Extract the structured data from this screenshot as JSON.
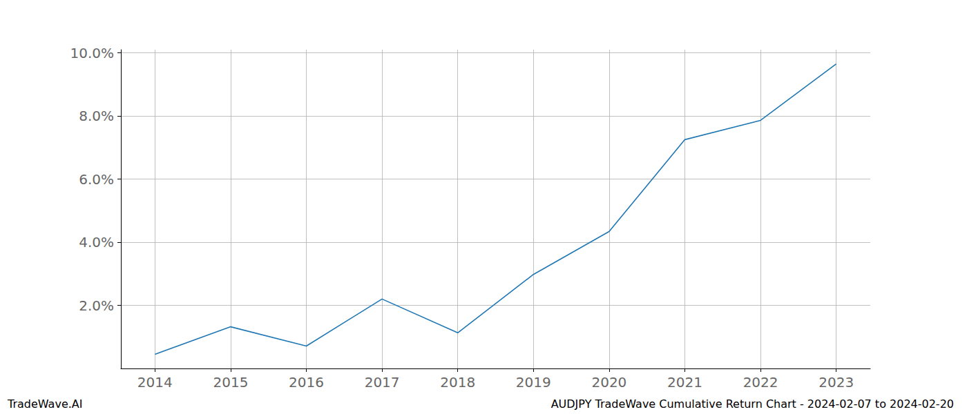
{
  "chart_data": {
    "type": "line",
    "title": "AUDJPY TradeWave Cumulative Return Chart - 2024-02-07 to 2024-02-20",
    "watermark": "TradeWave.AI",
    "x": [
      2014,
      2015,
      2016,
      2017,
      2018,
      2019,
      2020,
      2021,
      2022,
      2023
    ],
    "values": [
      0.45,
      1.32,
      0.71,
      2.2,
      1.13,
      2.98,
      4.34,
      7.25,
      7.86,
      9.65
    ],
    "color": "#1f77b4",
    "xlim": [
      2013.55,
      2023.45
    ],
    "xticks": [
      2014,
      2015,
      2016,
      2017,
      2018,
      2019,
      2020,
      2021,
      2022,
      2023
    ],
    "ylim": [
      0,
      10.1
    ],
    "yticks": [
      {
        "value": 2,
        "label": "2.0%"
      },
      {
        "value": 4,
        "label": "4.0%"
      },
      {
        "value": 6,
        "label": "6.0%"
      },
      {
        "value": 8,
        "label": "8.0%"
      },
      {
        "value": 10,
        "label": "10.0%"
      }
    ],
    "grid": true
  }
}
